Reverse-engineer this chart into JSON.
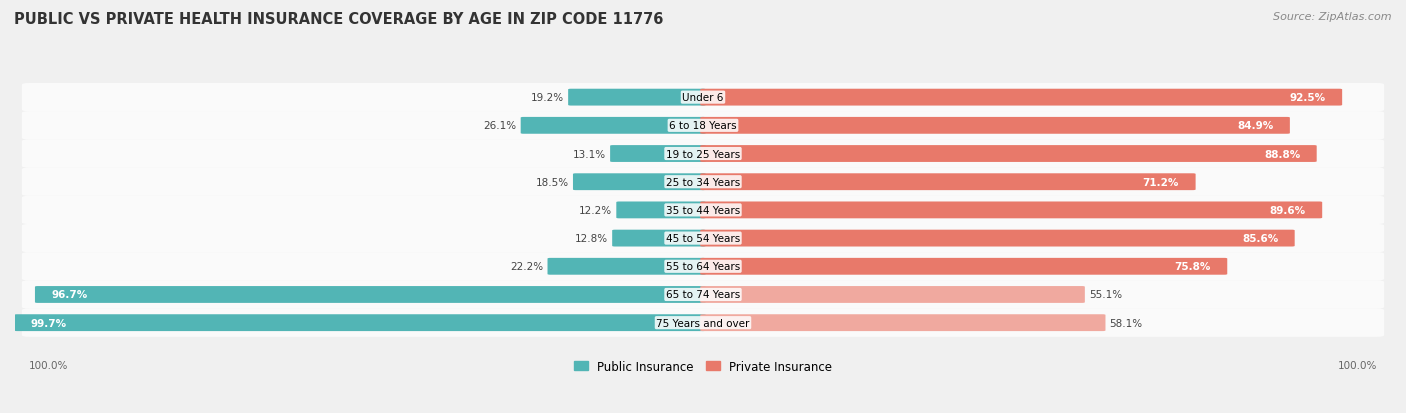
{
  "title": "PUBLIC VS PRIVATE HEALTH INSURANCE COVERAGE BY AGE IN ZIP CODE 11776",
  "source": "Source: ZipAtlas.com",
  "categories": [
    "Under 6",
    "6 to 18 Years",
    "19 to 25 Years",
    "25 to 34 Years",
    "35 to 44 Years",
    "45 to 54 Years",
    "55 to 64 Years",
    "65 to 74 Years",
    "75 Years and over"
  ],
  "public_values": [
    19.2,
    26.1,
    13.1,
    18.5,
    12.2,
    12.8,
    22.2,
    96.7,
    99.7
  ],
  "private_values": [
    92.5,
    84.9,
    88.8,
    71.2,
    89.6,
    85.6,
    75.8,
    55.1,
    58.1
  ],
  "public_color": "#52b5b5",
  "private_color": "#e8796a",
  "public_color_light": "#52b5b5",
  "private_color_light": "#f0a99f",
  "bg_color": "#f0f0f0",
  "bar_bg_color": "#e8e8e8",
  "title_color": "#333333",
  "source_color": "#888888",
  "max_value": 100.0,
  "legend_public": "Public Insurance",
  "legend_private": "Private Insurance"
}
